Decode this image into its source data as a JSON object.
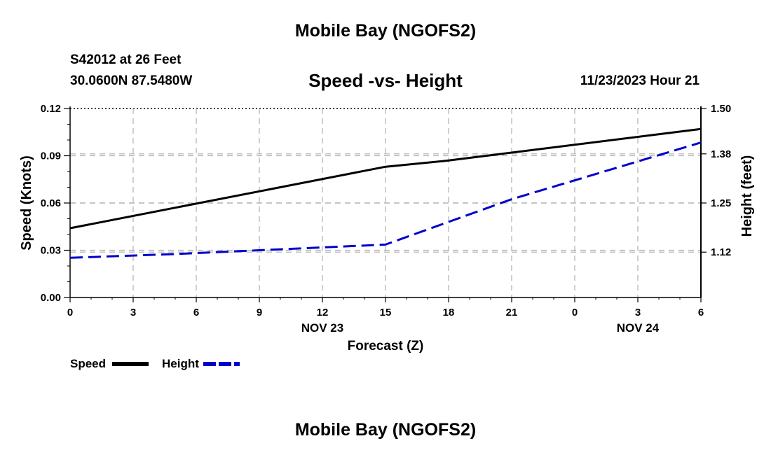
{
  "header": {
    "title_top": "Mobile Bay (NGOFS2)",
    "station": "S42012 at 26 Feet",
    "coords": "30.0600N  87.5480W",
    "chart_title": "Speed -vs- Height",
    "datetime": "11/23/2023 Hour 21"
  },
  "footer": {
    "title_bottom": "Mobile Bay (NGOFS2)"
  },
  "colors": {
    "speed": "#000000",
    "height": "#0000cc",
    "grid": "#b0b0b0"
  },
  "chart_data": {
    "type": "line",
    "title": "Speed -vs- Height",
    "xlabel": "Forecast (Z)",
    "ylabel": "Speed (Knots)",
    "y2label": "Height (feet)",
    "x": [
      0,
      3,
      6,
      9,
      12,
      15,
      18,
      21,
      24,
      27,
      30
    ],
    "x_tick_labels": [
      "0",
      "3",
      "6",
      "9",
      "12",
      "15",
      "18",
      "21",
      "0",
      "3",
      "6"
    ],
    "date_labels": [
      {
        "x": 12,
        "label": "NOV 23"
      },
      {
        "x": 27,
        "label": "NOV 24"
      }
    ],
    "xlim": [
      0,
      30
    ],
    "ylim": [
      0,
      0.12
    ],
    "y_ticks": [
      0.0,
      0.03,
      0.06,
      0.09,
      0.12
    ],
    "y_tick_labels": [
      "0.00",
      "0.03",
      "0.06",
      "0.09",
      "0.12"
    ],
    "y2lim": [
      1.0,
      1.5
    ],
    "y2_ticks": [
      1.12,
      1.25,
      1.38,
      1.5
    ],
    "y2_tick_labels": [
      "1.12",
      "1.25",
      "1.38",
      "1.50"
    ],
    "grid": true,
    "series": [
      {
        "name": "Speed",
        "axis": "left",
        "style": "solid",
        "x": [
          0,
          15,
          18,
          30
        ],
        "values": [
          0.044,
          0.083,
          0.087,
          0.107
        ]
      },
      {
        "name": "Height",
        "axis": "right",
        "style": "dashed",
        "x": [
          0,
          5,
          15,
          21,
          30
        ],
        "values": [
          1.105,
          1.115,
          1.14,
          1.26,
          1.41
        ]
      }
    ],
    "legend": [
      {
        "label": "Speed"
      },
      {
        "label": "Height"
      }
    ]
  }
}
